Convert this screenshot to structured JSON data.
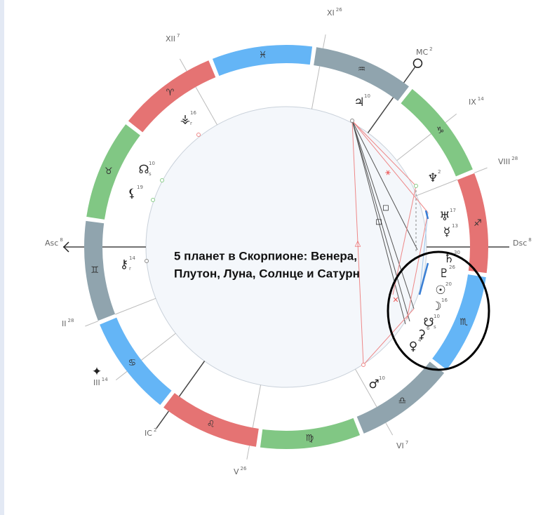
{
  "houses": [
    {
      "label": "Asc",
      "degree": 8
    },
    {
      "label": "XII",
      "degree": 7
    },
    {
      "label": "XI",
      "degree": 26
    },
    {
      "label": "MC",
      "degree": 2
    },
    {
      "label": "IX",
      "degree": 14
    },
    {
      "label": "VIII",
      "degree": 28
    },
    {
      "label": "Dsc",
      "degree": 8
    },
    {
      "label": "VI",
      "degree": 7
    },
    {
      "label": "V",
      "degree": 26
    },
    {
      "label": "IC",
      "degree": 2
    },
    {
      "label": "III",
      "degree": 14
    },
    {
      "label": "II",
      "degree": 28
    }
  ],
  "signs": [
    "♈",
    "♉",
    "♊",
    "♋",
    "♌",
    "♍",
    "♎",
    "♏",
    "♐",
    "♑",
    "♒",
    "♓"
  ],
  "planets": [
    {
      "glyph": "♃",
      "degree": 10
    },
    {
      "glyph": "♆",
      "degree": 2
    },
    {
      "glyph": "♅",
      "degree": 17
    },
    {
      "glyph": "☿",
      "degree": 13
    },
    {
      "glyph": "♄",
      "degree": 30
    },
    {
      "glyph": "♇",
      "degree": 26
    },
    {
      "glyph": "☉",
      "degree": 20
    },
    {
      "glyph": "☽",
      "degree": 16
    },
    {
      "glyph": "☋",
      "degree": 10,
      "flag": "s"
    },
    {
      "glyph": "⚳",
      "degree": 6
    },
    {
      "glyph": "♀",
      "degree": 4
    },
    {
      "glyph": "♂",
      "degree": 10
    },
    {
      "glyph": "⚷",
      "degree": 14,
      "flag": "r"
    },
    {
      "glyph": "⚸",
      "degree": 19
    },
    {
      "glyph": "☊",
      "degree": 10,
      "flag": "s"
    },
    {
      "glyph": "⚶",
      "degree": 16,
      "flag": "r"
    },
    {
      "glyph": "✦"
    }
  ],
  "annotation": [
    "5 планет в Скорпионе: Венера,",
    "Плутон, Луна, Солнце и Сатурн"
  ]
}
